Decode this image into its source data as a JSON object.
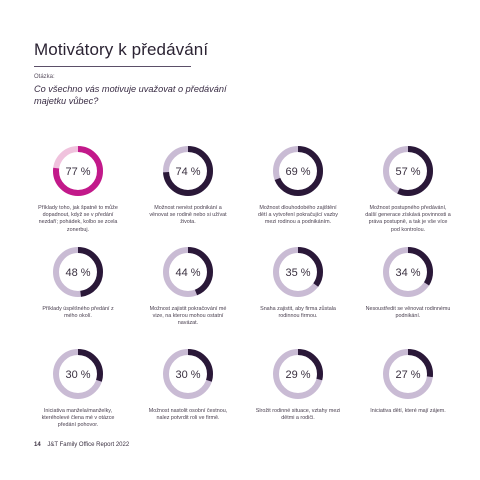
{
  "header": {
    "title": "Motivátory k předávání",
    "label": "Otázka:",
    "question": "Co všechno vás motivuje uvažovat o předávání majetku vůbec?"
  },
  "colors": {
    "track": "#c9bbd4",
    "fill_dark": "#2a1838",
    "fill_highlight": "#c2198a",
    "track_highlight": "#f0c2dd"
  },
  "items": [
    {
      "value": 77,
      "label": "77 %",
      "highlight": true,
      "caption": "Příklady toho, jak špatně to může dopadnout, když se v předání nezdaří; pohádek, kolbo se zcela zonerbuj."
    },
    {
      "value": 74,
      "label": "74 %",
      "highlight": false,
      "caption": "Možnost nenést podnikání a věnovat se rodině nebo si užívat života."
    },
    {
      "value": 69,
      "label": "69 %",
      "highlight": false,
      "caption": "Možnost dlouhodobého zajištění dětí a vytvoření pokračující vazby mezi rodinou a podnikáním."
    },
    {
      "value": 57,
      "label": "57 %",
      "highlight": false,
      "caption": "Možnost postupného předávání, další generace získává povinnosti a práva postupně, a tak je vše více pod kontrolou."
    },
    {
      "value": 48,
      "label": "48 %",
      "highlight": false,
      "caption": "Příklady úspěšného předání z mého okolí."
    },
    {
      "value": 44,
      "label": "44 %",
      "highlight": false,
      "caption": "Možnost zajistit pokračování mé vize, na kterou mohou ostatní navázat."
    },
    {
      "value": 35,
      "label": "35 %",
      "highlight": false,
      "caption": "Snaha zajistit, aby firma zůstala rodinnou firmou."
    },
    {
      "value": 34,
      "label": "34 %",
      "highlight": false,
      "caption": "Nesoustředit se věnovat rodinnému podnikání."
    },
    {
      "value": 30,
      "label": "30 %",
      "highlight": false,
      "caption": "Iniciativa manžela/manželky, kteréholevé člena mé v otázce předání pohovor."
    },
    {
      "value": 30,
      "label": "30 %",
      "highlight": false,
      "caption": "Možnost nastolit osobní čestnou, nalez potvrdit roli ve firmě."
    },
    {
      "value": 29,
      "label": "29 %",
      "highlight": false,
      "caption": "Slrožit rodinné situace, vztahy mezi dětmi a rodiči."
    },
    {
      "value": 27,
      "label": "27 %",
      "highlight": false,
      "caption": "Iniciativa dětí, které mají zájem."
    }
  ],
  "footer": {
    "page": "14",
    "text": "J&T Family Office Report 2022"
  }
}
